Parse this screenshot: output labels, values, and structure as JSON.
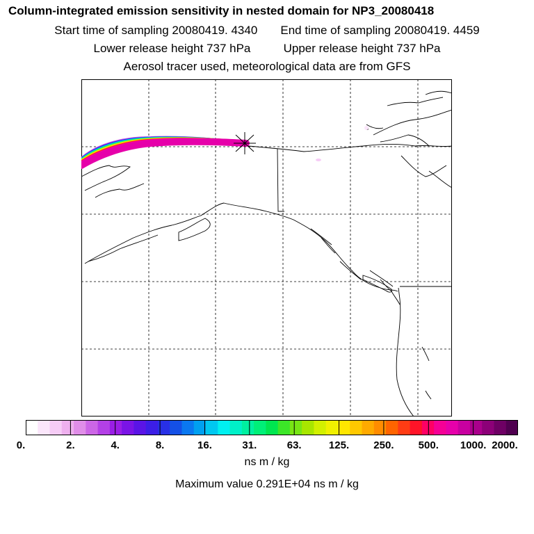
{
  "header": {
    "title": "Column-integrated emission sensitivity in nested domain for NP3_20080418",
    "start_label": "Start time of sampling 20080419.  4340",
    "end_label": "End time of sampling 20080419.  4459",
    "lower_label": "Lower release height  737 hPa",
    "upper_label": "Upper release height  737 hPa",
    "tracer_label": "Aerosol tracer used, meteorological data are from GFS"
  },
  "colorbar": {
    "tick_labels": [
      "0.",
      "2.",
      "4.",
      "8.",
      "16.",
      "31.",
      "63.",
      "125.",
      "250.",
      "500.",
      "1000.",
      "2000."
    ],
    "units": "ns m / kg",
    "colors": [
      "#ffffff",
      "#fbe6fb",
      "#f6ccf6",
      "#eeb0ee",
      "#e08ee8",
      "#cc66e6",
      "#b340e6",
      "#9a1ee6",
      "#7a14e6",
      "#5a14e6",
      "#3c1ee6",
      "#2830e6",
      "#1450e6",
      "#0a78f0",
      "#00a0f0",
      "#00c8f0",
      "#00f0f0",
      "#00f0c8",
      "#00f0a0",
      "#00f078",
      "#00e650",
      "#3ce628",
      "#78e614",
      "#a8e600",
      "#d2f000",
      "#f0f000",
      "#ffe600",
      "#ffc800",
      "#ffaa00",
      "#ff8c00",
      "#ff6400",
      "#ff3c14",
      "#ff1428",
      "#ff0064",
      "#f50096",
      "#e600aa",
      "#c800a0",
      "#aa008c",
      "#8c0078",
      "#6e0064",
      "#500050"
    ]
  },
  "footer": {
    "max_value": "Maximum value  0.291E+04 ns m / kg"
  },
  "plume_colors": [
    "#cc66e6",
    "#3c1ee6",
    "#00c8f0",
    "#00f078",
    "#d2f000",
    "#ffc800",
    "#ff1428",
    "#f500aa",
    "#e600aa"
  ]
}
